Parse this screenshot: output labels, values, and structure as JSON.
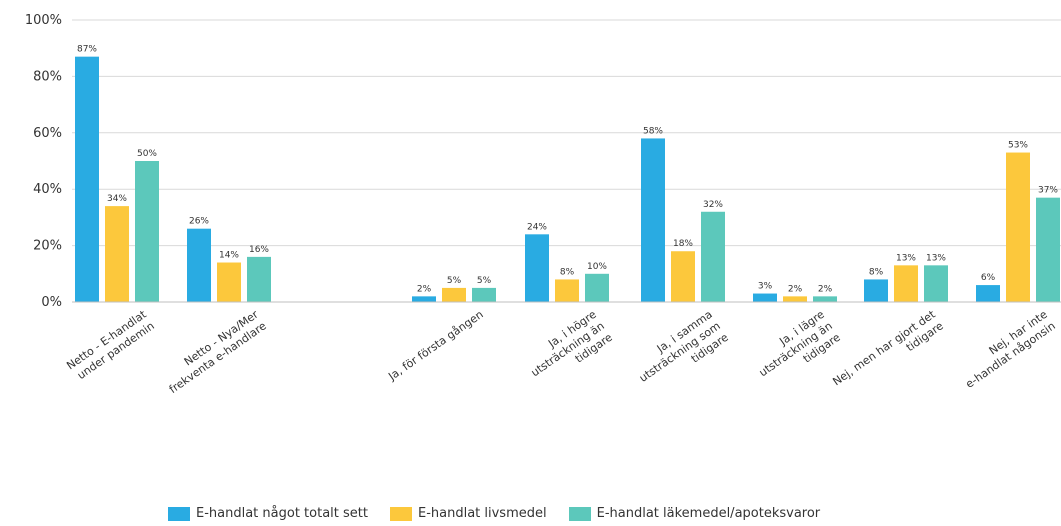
{
  "chart_data": {
    "type": "bar",
    "categories": [
      [
        "Netto - E-handlat",
        "under pandemin"
      ],
      [
        "Netto - Nya/Mer",
        "frekventa e-handlare"
      ],
      [],
      [
        "Ja, för första gången"
      ],
      [
        "Ja, i högre",
        "utsträckning än",
        "tidigare"
      ],
      [
        "Ja, i samma",
        "utsträckning som",
        "tidigare"
      ],
      [
        "Ja, i lägre",
        "utsträckning än",
        "tidigare"
      ],
      [
        "Nej, men har gjort det",
        "tidigare"
      ],
      [
        "Nej, har inte",
        "e-handlat någonsin"
      ]
    ],
    "series": [
      {
        "name": "E-handlat något totalt sett",
        "color": "#29abe2",
        "values": [
          87,
          26,
          null,
          2,
          24,
          58,
          3,
          8,
          6
        ],
        "labels": [
          "87%",
          "26%",
          "",
          "2%",
          "24%",
          "58%",
          "3%",
          "8%",
          "6%"
        ]
      },
      {
        "name": "E-handlat livsmedel",
        "color": "#fcc83c",
        "values": [
          34,
          14,
          null,
          5,
          8,
          18,
          2,
          13,
          53
        ],
        "labels": [
          "34%",
          "14%",
          "",
          "5%",
          "8%",
          "18%",
          "2%",
          "13%",
          "53%"
        ]
      },
      {
        "name": "E-handlat läkemedel/apoteksvaror",
        "color": "#5cc8bb",
        "values": [
          50,
          16,
          null,
          5,
          10,
          32,
          2,
          13,
          37
        ],
        "labels": [
          "50%",
          "16%",
          "",
          "5%",
          "10%",
          "32%",
          "2%",
          "13%",
          "37%"
        ]
      }
    ],
    "ylim": [
      0,
      100
    ],
    "yticks": [
      0,
      20,
      40,
      60,
      80,
      100
    ],
    "ytick_labels": [
      "0%",
      "20%",
      "40%",
      "60%",
      "80%",
      "100%"
    ],
    "grid": true,
    "legend_position": "bottom"
  }
}
